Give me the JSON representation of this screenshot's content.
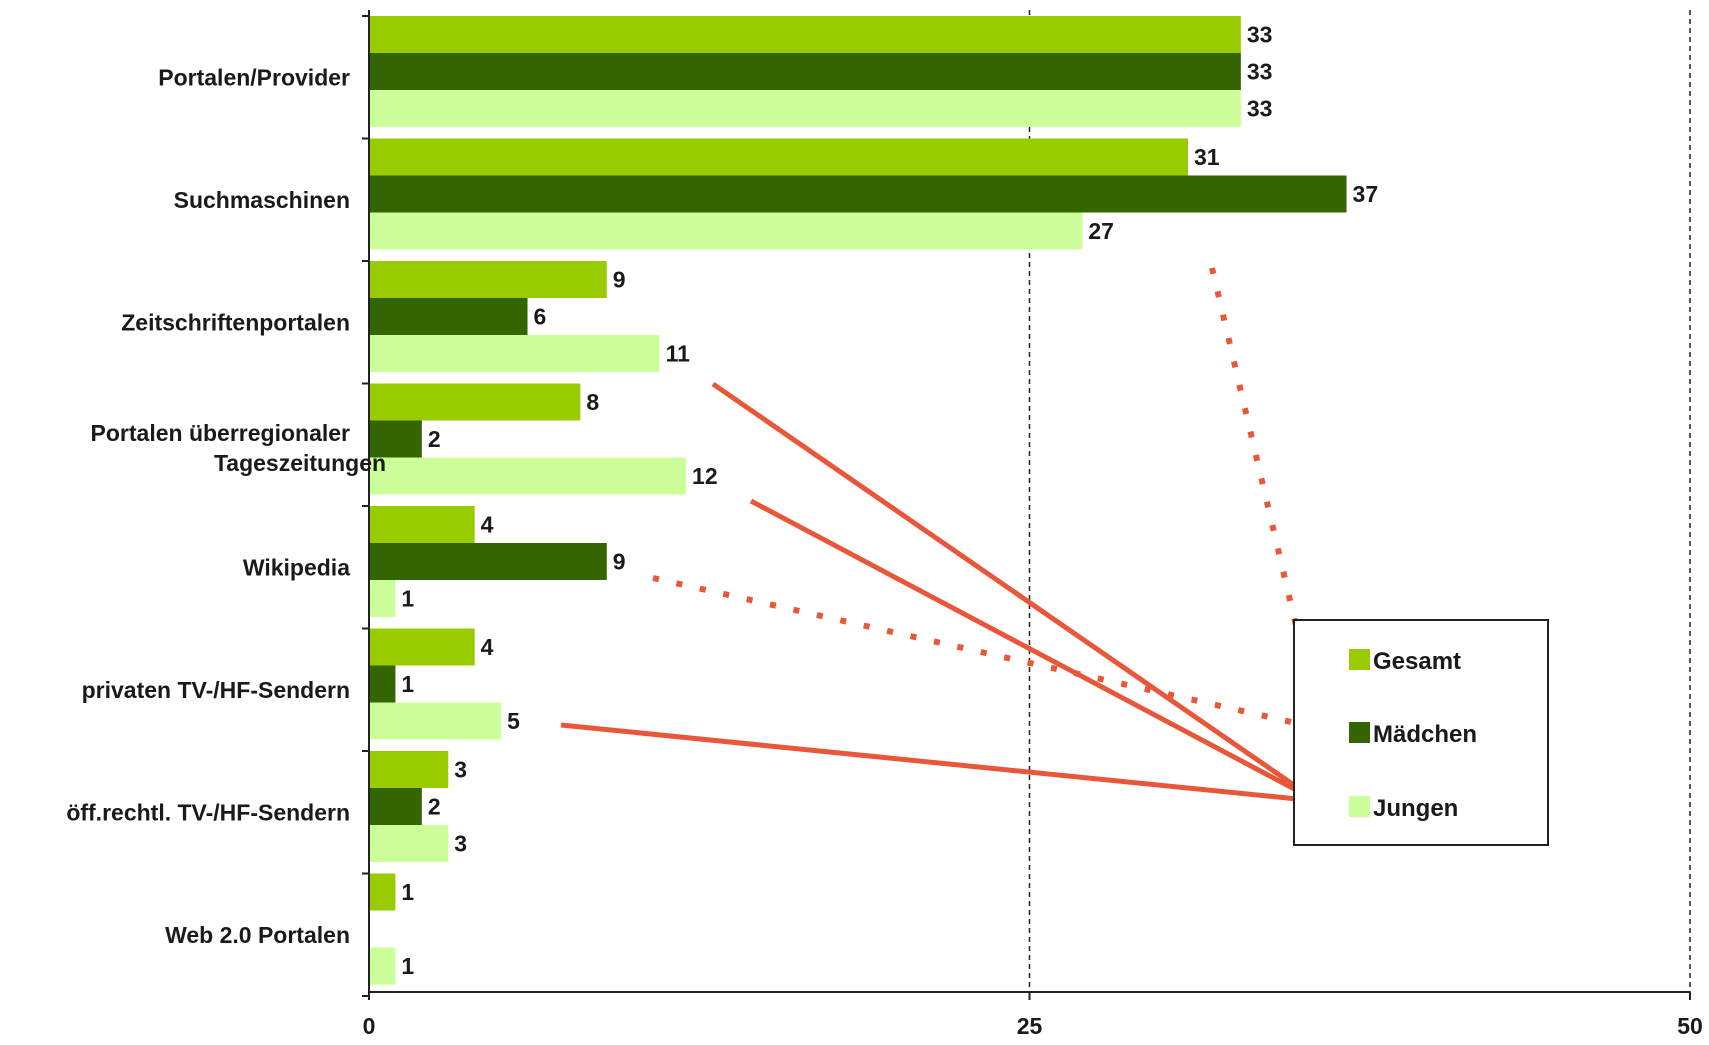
{
  "chart_data": {
    "type": "bar",
    "orientation": "horizontal",
    "categories": [
      [
        "Portalen/Provider"
      ],
      [
        "Suchmaschinen"
      ],
      [
        "Zeitschriftenportalen"
      ],
      [
        "Portalen überregionaler",
        "Tageszeitungen"
      ],
      [
        "Wikipedia"
      ],
      [
        "privaten TV-/HF-Sendern"
      ],
      [
        "öff.rechtl. TV-/HF-Sendern"
      ],
      [
        "Web 2.0 Portalen"
      ]
    ],
    "series": [
      {
        "name": "Gesamt",
        "color": "#99cc00",
        "values": [
          33,
          31,
          9,
          8,
          4,
          4,
          3,
          1
        ]
      },
      {
        "name": "Mädchen",
        "color": "#336600",
        "values": [
          33,
          37,
          6,
          2,
          9,
          1,
          2,
          null
        ]
      },
      {
        "name": "Jungen",
        "color": "#ccff99",
        "values": [
          33,
          27,
          11,
          12,
          1,
          5,
          3,
          1
        ]
      }
    ],
    "xlim": [
      0,
      50
    ],
    "xticks": [
      "0",
      "25",
      "50"
    ],
    "grid": "vertical dashed at 25 and 50",
    "legend": "right",
    "annotation_color": "#e8573a"
  }
}
